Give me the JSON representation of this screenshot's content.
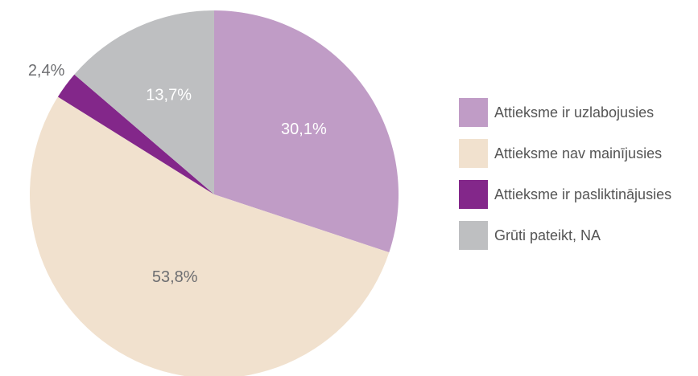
{
  "colors": {
    "improved": "#c09cc6",
    "unchanged": "#f1e1ce",
    "worsened": "#83278a",
    "hard_to_say": "#bebfc1",
    "label_light": "#ffffff",
    "label_dark": "#6d6e71"
  },
  "chart_data": {
    "type": "pie",
    "start": "12 o'clock",
    "direction": "clockwise",
    "slices": [
      {
        "key": "improved",
        "label": "Attieksme ir uzlabojusies",
        "value": 30.1,
        "display": "30,1%",
        "color": "#c09cc6",
        "label_color": "#ffffff"
      },
      {
        "key": "unchanged",
        "label": "Attieksme nav mainījusies",
        "value": 53.8,
        "display": "53,8%",
        "color": "#f1e1ce",
        "label_color": "#6d6e71"
      },
      {
        "key": "worsened",
        "label": "Attieksme ir pasliktinājusies",
        "value": 2.4,
        "display": "2,4%",
        "color": "#83278a",
        "label_color": "#6d6e71"
      },
      {
        "key": "hard_to_say",
        "label": "Grūti pateikt, NA",
        "value": 13.7,
        "display": "13,7%",
        "color": "#bebfc1",
        "label_color": "#ffffff"
      }
    ],
    "legend_position": "right"
  },
  "legend": {
    "items": [
      {
        "label": "Attieksme ir uzlabojusies",
        "color": "#c09cc6"
      },
      {
        "label": "Attieksme nav mainījusies",
        "color": "#f1e1ce"
      },
      {
        "label": "Attieksme ir pasliktinājusies",
        "color": "#83278a"
      },
      {
        "label": "Grūti pateikt, NA",
        "color": "#bebfc1"
      }
    ]
  }
}
